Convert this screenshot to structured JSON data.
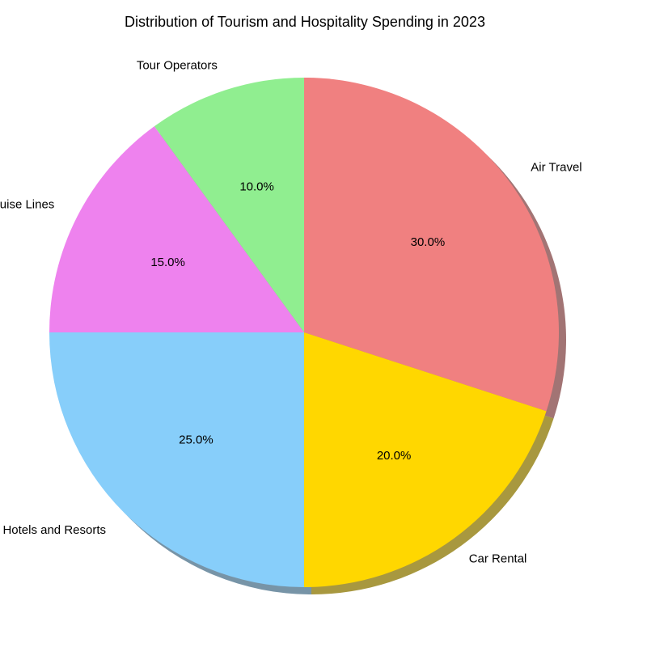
{
  "chart_data": {
    "type": "pie",
    "title": "Distribution of Tourism and Hospitality Spending in 2023",
    "start_angle_deg": 90,
    "direction": "clockwise",
    "shadow": true,
    "legend": "none",
    "slices": [
      {
        "label": "Air Travel",
        "value": 30.0,
        "pct_text": "30.0%",
        "color": "#F08080"
      },
      {
        "label": "Car Rental",
        "value": 20.0,
        "pct_text": "20.0%",
        "color": "#FFD700"
      },
      {
        "label": "Hotels and Resorts",
        "value": 25.0,
        "pct_text": "25.0%",
        "color": "#87CEFA"
      },
      {
        "label": "Cruise Lines",
        "value": 15.0,
        "pct_text": "15.0%",
        "color": "#EE82EE"
      },
      {
        "label": "Tour Operators",
        "value": 10.0,
        "pct_text": "10.0%",
        "color": "#90EE90"
      }
    ]
  }
}
